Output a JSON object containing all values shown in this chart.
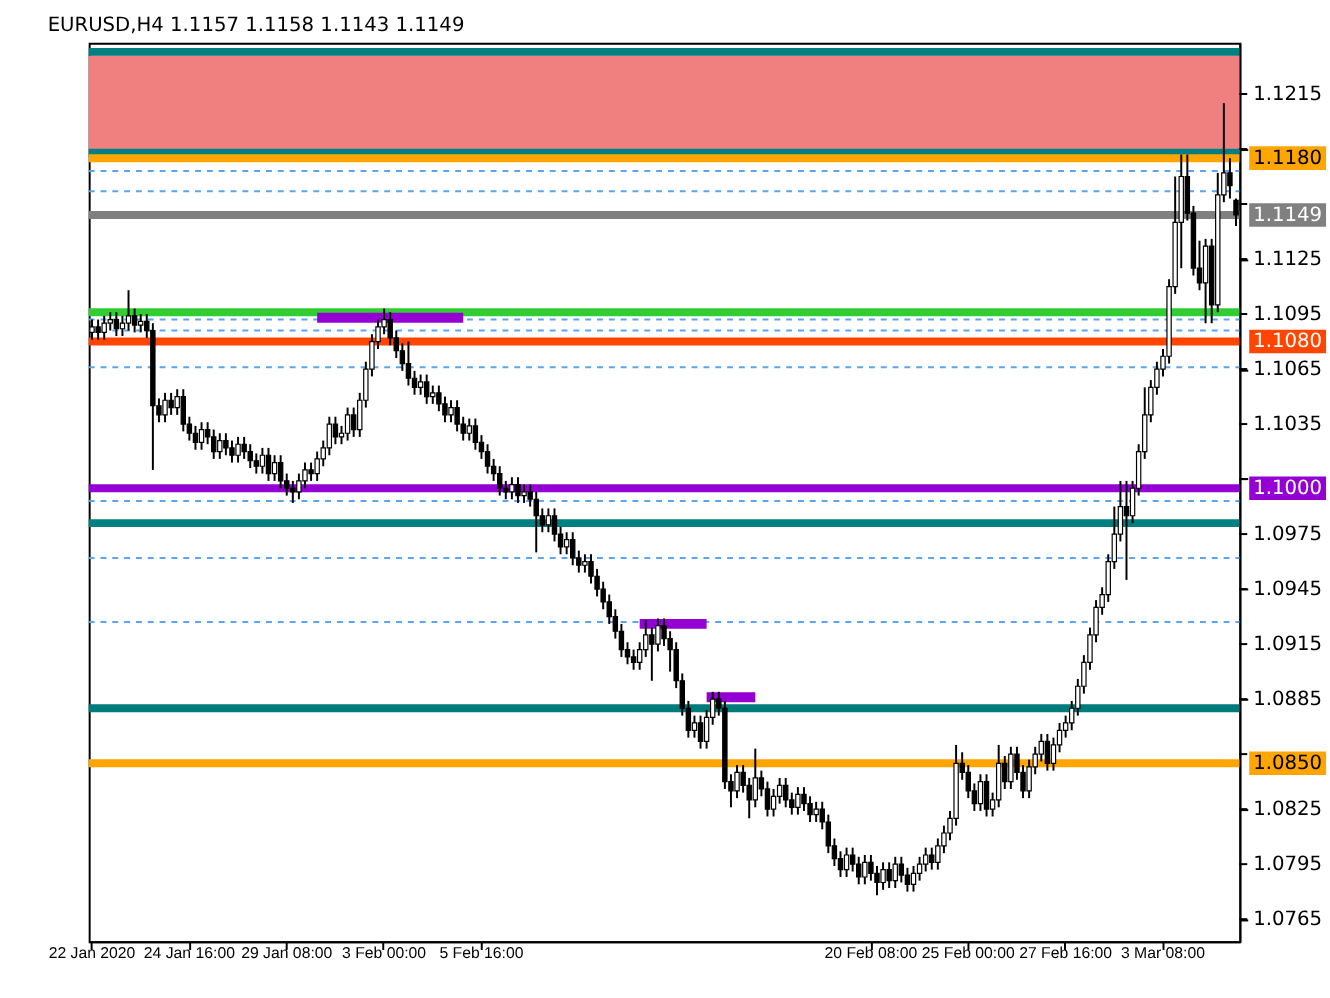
{
  "chart_data": {
    "type": "candlestick",
    "title": "EURUSD,H4  1.1157 1.1158 1.1143 1.1149",
    "categories": [
      "22 Jan 2020",
      null,
      null,
      null,
      null,
      null,
      null,
      null,
      null,
      null,
      null,
      null,
      null,
      null,
      null,
      null,
      "24 Jan 16:00",
      null,
      null,
      null,
      null,
      null,
      null,
      null,
      null,
      null,
      null,
      null,
      null,
      null,
      null,
      null,
      "29 Jan 08:00",
      null,
      null,
      null,
      null,
      null,
      null,
      null,
      null,
      null,
      null,
      null,
      null,
      null,
      null,
      null,
      "3 Feb 00:00",
      null,
      null,
      null,
      null,
      null,
      null,
      null,
      null,
      null,
      null,
      null,
      null,
      null,
      null,
      null,
      "5 Feb 16:00",
      null,
      null,
      null,
      null,
      null,
      null,
      null,
      null,
      null,
      null,
      null,
      null,
      null,
      null,
      null,
      null,
      null,
      null,
      null,
      null,
      null,
      null,
      null,
      null,
      null,
      null,
      null,
      null,
      null,
      null,
      null,
      null,
      null,
      null,
      null,
      null,
      null,
      null,
      null,
      null,
      null,
      null,
      null,
      null,
      null,
      null,
      null,
      null,
      null,
      null,
      null,
      null,
      null,
      null,
      null,
      null,
      null,
      null,
      null,
      null,
      null,
      null,
      null,
      "20 Feb 08:00",
      null,
      null,
      null,
      null,
      null,
      null,
      null,
      null,
      null,
      null,
      null,
      null,
      null,
      null,
      null,
      "25 Feb 00:00",
      null,
      null,
      null,
      null,
      null,
      null,
      null,
      null,
      null,
      null,
      null,
      null,
      null,
      null,
      null,
      "27 Feb 16:00",
      null,
      null,
      null,
      null,
      null,
      null,
      null,
      null,
      null,
      null,
      null,
      null,
      null,
      null,
      null,
      "3 Mar 08:00",
      null,
      null,
      null,
      null,
      null,
      null,
      null,
      null,
      null,
      null,
      null,
      null
    ],
    "ohlc": [
      [
        1.1085,
        1.1092,
        1.1081,
        1.1088
      ],
      [
        1.1088,
        1.1092,
        1.1081,
        1.1085
      ],
      [
        1.1085,
        1.1094,
        1.1081,
        1.109
      ],
      [
        1.109,
        1.1096,
        1.1086,
        1.1092
      ],
      [
        1.1092,
        1.1096,
        1.1083,
        1.1087
      ],
      [
        1.1087,
        1.1094,
        1.1083,
        1.109
      ],
      [
        1.109,
        1.1108,
        1.1086,
        1.1094
      ],
      [
        1.1094,
        1.1098,
        1.1085,
        1.1089
      ],
      [
        1.1089,
        1.1095,
        1.1085,
        1.1091
      ],
      [
        1.1091,
        1.1095,
        1.1082,
        1.1086
      ],
      [
        1.1086,
        1.109,
        1.101,
        1.1045
      ],
      [
        1.1045,
        1.1049,
        1.1036,
        1.104
      ],
      [
        1.104,
        1.1052,
        1.1036,
        1.1048
      ],
      [
        1.1048,
        1.1052,
        1.104,
        1.1044
      ],
      [
        1.1044,
        1.1054,
        1.104,
        1.105
      ],
      [
        1.105,
        1.1054,
        1.1031,
        1.1035
      ],
      [
        1.1035,
        1.1039,
        1.1026,
        1.103
      ],
      [
        1.103,
        1.1034,
        1.1021,
        1.1025
      ],
      [
        1.1025,
        1.1036,
        1.1021,
        1.1032
      ],
      [
        1.1032,
        1.1036,
        1.1024,
        1.1028
      ],
      [
        1.1028,
        1.1032,
        1.1016,
        1.102
      ],
      [
        1.102,
        1.103,
        1.1016,
        1.1026
      ],
      [
        1.1026,
        1.103,
        1.1018,
        1.1022
      ],
      [
        1.1022,
        1.1026,
        1.1014,
        1.1018
      ],
      [
        1.1018,
        1.1028,
        1.1014,
        1.1024
      ],
      [
        1.1024,
        1.1028,
        1.1016,
        1.102
      ],
      [
        1.102,
        1.1024,
        1.1011,
        1.1015
      ],
      [
        1.1015,
        1.1019,
        1.1008,
        1.1012
      ],
      [
        1.1012,
        1.1022,
        1.1008,
        1.1018
      ],
      [
        1.1018,
        1.1022,
        1.1004,
        1.1008
      ],
      [
        1.1008,
        1.1018,
        1.1004,
        1.1014
      ],
      [
        1.1014,
        1.1018,
        1.1,
        1.1004
      ],
      [
        1.1004,
        1.1008,
        1.0996,
        1.1
      ],
      [
        1.1,
        1.1004,
        1.0992,
        1.0998
      ],
      [
        1.0998,
        1.1008,
        1.0994,
        1.1004
      ],
      [
        1.1004,
        1.1014,
        1.1,
        1.101
      ],
      [
        1.101,
        1.1014,
        1.1004,
        1.1008
      ],
      [
        1.1008,
        1.102,
        1.1004,
        1.1016
      ],
      [
        1.1016,
        1.1026,
        1.1012,
        1.1022
      ],
      [
        1.1022,
        1.1039,
        1.1018,
        1.1035
      ],
      [
        1.1035,
        1.1039,
        1.1024,
        1.1028
      ],
      [
        1.1028,
        1.1034,
        1.1024,
        1.103
      ],
      [
        1.103,
        1.1044,
        1.1026,
        1.104
      ],
      [
        1.104,
        1.1044,
        1.1028,
        1.1032
      ],
      [
        1.1032,
        1.1052,
        1.1028,
        1.1048
      ],
      [
        1.1048,
        1.1069,
        1.1044,
        1.1065
      ],
      [
        1.1065,
        1.1084,
        1.1061,
        1.108
      ],
      [
        1.108,
        1.1092,
        1.1076,
        1.1088
      ],
      [
        1.1088,
        1.1098,
        1.1084,
        1.1092
      ],
      [
        1.1092,
        1.1096,
        1.1078,
        1.1082
      ],
      [
        1.1082,
        1.1086,
        1.1071,
        1.1075
      ],
      [
        1.1075,
        1.1079,
        1.1064,
        1.1068
      ],
      [
        1.1068,
        1.108,
        1.1056,
        1.106
      ],
      [
        1.106,
        1.1064,
        1.1051,
        1.1055
      ],
      [
        1.1055,
        1.1062,
        1.1051,
        1.1058
      ],
      [
        1.1058,
        1.1062,
        1.1046,
        1.105
      ],
      [
        1.105,
        1.1056,
        1.1046,
        1.1052
      ],
      [
        1.1052,
        1.1056,
        1.1042,
        1.1046
      ],
      [
        1.1046,
        1.105,
        1.1036,
        1.104
      ],
      [
        1.104,
        1.1048,
        1.1036,
        1.1044
      ],
      [
        1.1044,
        1.1048,
        1.1031,
        1.1035
      ],
      [
        1.1035,
        1.1039,
        1.1026,
        1.103
      ],
      [
        1.103,
        1.1038,
        1.1026,
        1.1034
      ],
      [
        1.1034,
        1.1038,
        1.1021,
        1.1025
      ],
      [
        1.1025,
        1.1029,
        1.1016,
        1.102
      ],
      [
        1.102,
        1.1024,
        1.1008,
        1.1012
      ],
      [
        1.1012,
        1.1016,
        1.1004,
        1.1008
      ],
      [
        1.1008,
        1.1012,
        1.0996,
        1.1
      ],
      [
        1.1,
        1.1004,
        1.0994,
        1.0998
      ],
      [
        1.0998,
        1.1006,
        1.0994,
        1.1002
      ],
      [
        1.1002,
        1.1006,
        1.0992,
        1.0996
      ],
      [
        1.0996,
        1.1002,
        1.0992,
        1.0998
      ],
      [
        1.0998,
        1.1002,
        1.099,
        1.0994
      ],
      [
        1.0994,
        1.0998,
        1.0965,
        1.0985
      ],
      [
        1.0985,
        1.0989,
        1.0976,
        1.098
      ],
      [
        1.098,
        1.0989,
        1.0976,
        1.0985
      ],
      [
        1.0985,
        1.0989,
        1.0971,
        1.0975
      ],
      [
        1.0975,
        1.0979,
        1.0964,
        1.0968
      ],
      [
        1.0968,
        1.0976,
        1.0964,
        1.0972
      ],
      [
        1.0972,
        1.0976,
        1.0958,
        1.0962
      ],
      [
        1.0962,
        1.0966,
        1.0954,
        1.0958
      ],
      [
        1.0958,
        1.0964,
        1.0954,
        1.096
      ],
      [
        1.096,
        1.0964,
        1.0948,
        1.0952
      ],
      [
        1.0952,
        1.0956,
        1.0941,
        1.0945
      ],
      [
        1.0945,
        1.0949,
        1.0934,
        1.0938
      ],
      [
        1.0938,
        1.0942,
        1.0926,
        1.093
      ],
      [
        1.093,
        1.0934,
        1.0918,
        1.0922
      ],
      [
        1.0922,
        1.0926,
        1.0908,
        1.0912
      ],
      [
        1.0912,
        1.0916,
        1.0904,
        1.0908
      ],
      [
        1.0908,
        1.0912,
        1.0901,
        1.0905
      ],
      [
        1.0905,
        1.0916,
        1.0901,
        1.0912
      ],
      [
        1.0912,
        1.0928,
        1.0908,
        1.092
      ],
      [
        1.092,
        1.0924,
        1.0895,
        1.0915
      ],
      [
        1.0915,
        1.0929,
        1.0911,
        1.0925
      ],
      [
        1.0925,
        1.0929,
        1.0914,
        1.0918
      ],
      [
        1.0918,
        1.0922,
        1.09,
        1.0912
      ],
      [
        1.0912,
        1.0916,
        1.0891,
        1.0895
      ],
      [
        1.0895,
        1.0899,
        1.0876,
        1.088
      ],
      [
        1.088,
        1.0884,
        1.0864,
        1.0868
      ],
      [
        1.0868,
        1.0876,
        1.0864,
        1.0872
      ],
      [
        1.0872,
        1.0876,
        1.0858,
        1.0862
      ],
      [
        1.0862,
        1.0879,
        1.0858,
        1.0875
      ],
      [
        1.0875,
        1.0889,
        1.0871,
        1.0885
      ],
      [
        1.0885,
        1.0889,
        1.0876,
        1.088
      ],
      [
        1.088,
        1.0884,
        1.0836,
        1.084
      ],
      [
        1.084,
        1.0844,
        1.0826,
        1.0835
      ],
      [
        1.0835,
        1.0849,
        1.0831,
        1.0845
      ],
      [
        1.0845,
        1.0849,
        1.0834,
        1.0838
      ],
      [
        1.0838,
        1.0842,
        1.082,
        1.083
      ],
      [
        1.083,
        1.0858,
        1.0826,
        1.0842
      ],
      [
        1.0842,
        1.0846,
        1.0832,
        1.0836
      ],
      [
        1.0836,
        1.084,
        1.0821,
        1.0825
      ],
      [
        1.0825,
        1.0836,
        1.0821,
        1.0832
      ],
      [
        1.0832,
        1.0842,
        1.0828,
        1.0838
      ],
      [
        1.0838,
        1.0842,
        1.0826,
        1.083
      ],
      [
        1.083,
        1.0834,
        1.0822,
        1.0826
      ],
      [
        1.0826,
        1.0837,
        1.0822,
        1.0833
      ],
      [
        1.0833,
        1.0837,
        1.0824,
        1.0828
      ],
      [
        1.0828,
        1.0832,
        1.0818,
        1.0822
      ],
      [
        1.0822,
        1.0829,
        1.0818,
        1.0825
      ],
      [
        1.0825,
        1.0829,
        1.0814,
        1.0818
      ],
      [
        1.0818,
        1.0822,
        1.0801,
        1.0805
      ],
      [
        1.0805,
        1.0809,
        1.0794,
        1.0798
      ],
      [
        1.0798,
        1.0802,
        1.0788,
        1.0792
      ],
      [
        1.0792,
        1.0804,
        1.0788,
        1.08
      ],
      [
        1.08,
        1.0804,
        1.0791,
        1.0795
      ],
      [
        1.0795,
        1.0799,
        1.0784,
        1.0788
      ],
      [
        1.0788,
        1.08,
        1.0784,
        1.0796
      ],
      [
        1.0796,
        1.08,
        1.0786,
        1.079
      ],
      [
        1.079,
        1.0794,
        1.0778,
        1.0785
      ],
      [
        1.0785,
        1.0796,
        1.0781,
        1.0792
      ],
      [
        1.0792,
        1.0796,
        1.0782,
        1.0786
      ],
      [
        1.0786,
        1.0799,
        1.0782,
        1.0795
      ],
      [
        1.0795,
        1.0799,
        1.0785,
        1.0789
      ],
      [
        1.0789,
        1.0793,
        1.078,
        1.0784
      ],
      [
        1.0784,
        1.0794,
        1.078,
        1.079
      ],
      [
        1.079,
        1.0799,
        1.0786,
        1.0795
      ],
      [
        1.0795,
        1.0804,
        1.0791,
        1.08
      ],
      [
        1.08,
        1.0804,
        1.0792,
        1.0796
      ],
      [
        1.0796,
        1.0809,
        1.0792,
        1.0805
      ],
      [
        1.0805,
        1.0816,
        1.0801,
        1.0812
      ],
      [
        1.0812,
        1.0824,
        1.0808,
        1.082
      ],
      [
        1.082,
        1.086,
        1.0816,
        1.085
      ],
      [
        1.085,
        1.0856,
        1.0841,
        1.0845
      ],
      [
        1.0845,
        1.0849,
        1.0831,
        1.0835
      ],
      [
        1.0835,
        1.0839,
        1.0824,
        1.0828
      ],
      [
        1.0828,
        1.0844,
        1.0824,
        1.084
      ],
      [
        1.084,
        1.0844,
        1.0821,
        1.0825
      ],
      [
        1.0825,
        1.0834,
        1.0821,
        1.083
      ],
      [
        1.083,
        1.086,
        1.0826,
        1.085
      ],
      [
        1.085,
        1.0854,
        1.0836,
        1.084
      ],
      [
        1.084,
        1.0859,
        1.0836,
        1.0855
      ],
      [
        1.0855,
        1.0859,
        1.0841,
        1.0845
      ],
      [
        1.0845,
        1.0849,
        1.0831,
        1.0835
      ],
      [
        1.0835,
        1.0852,
        1.0831,
        1.0848
      ],
      [
        1.0848,
        1.0859,
        1.0844,
        1.0855
      ],
      [
        1.0855,
        1.0866,
        1.0851,
        1.0862
      ],
      [
        1.0862,
        1.0866,
        1.0846,
        1.085
      ],
      [
        1.085,
        1.0864,
        1.0846,
        1.086
      ],
      [
        1.086,
        1.0872,
        1.0856,
        1.0868
      ],
      [
        1.0868,
        1.0876,
        1.0864,
        1.0872
      ],
      [
        1.0872,
        1.0884,
        1.0868,
        1.088
      ],
      [
        1.088,
        1.0896,
        1.0876,
        1.0892
      ],
      [
        1.0892,
        1.0909,
        1.0888,
        1.0905
      ],
      [
        1.0905,
        1.0924,
        1.0901,
        1.092
      ],
      [
        1.092,
        1.0939,
        1.0916,
        1.0935
      ],
      [
        1.0935,
        1.0946,
        1.0931,
        1.0942
      ],
      [
        1.0942,
        1.0964,
        1.0938,
        1.096
      ],
      [
        1.096,
        1.099,
        1.0956,
        1.0975
      ],
      [
        1.0975,
        1.1004,
        1.0971,
        1.099
      ],
      [
        1.099,
        1.1004,
        1.095,
        1.0985
      ],
      [
        1.0985,
        1.1004,
        1.0981,
        1.1
      ],
      [
        1.1,
        1.1024,
        1.0996,
        1.102
      ],
      [
        1.102,
        1.1055,
        1.1016,
        1.104
      ],
      [
        1.104,
        1.1059,
        1.1036,
        1.1055
      ],
      [
        1.1055,
        1.1069,
        1.1051,
        1.1065
      ],
      [
        1.1065,
        1.1076,
        1.1061,
        1.1072
      ],
      [
        1.1072,
        1.1114,
        1.1068,
        1.111
      ],
      [
        1.111,
        1.117,
        1.1106,
        1.1145
      ],
      [
        1.1145,
        1.1182,
        1.112,
        1.117
      ],
      [
        1.117,
        1.1182,
        1.1146,
        1.115
      ],
      [
        1.115,
        1.1154,
        1.1116,
        1.112
      ],
      [
        1.112,
        1.1135,
        1.1108,
        1.1112
      ],
      [
        1.1112,
        1.1136,
        1.109,
        1.1132
      ],
      [
        1.1132,
        1.1136,
        1.109,
        1.11
      ],
      [
        1.11,
        1.1172,
        1.1096,
        1.116
      ],
      [
        1.116,
        1.121,
        1.1156,
        1.1172
      ],
      [
        1.1172,
        1.118,
        1.1158,
        1.1165
      ],
      [
        1.1157,
        1.1158,
        1.1143,
        1.1149
      ]
    ],
    "series": [
      {
        "type": "line",
        "color": "#9400d3",
        "values": [
          null,
          null,
          null,
          null,
          null,
          null,
          null,
          null,
          null,
          null,
          null,
          null,
          null,
          null,
          null,
          null,
          null,
          null,
          null,
          null,
          null,
          null,
          null,
          null,
          null,
          null,
          null,
          null,
          null,
          null,
          null,
          null,
          null,
          null,
          null,
          null,
          null,
          1.1093,
          1.1093,
          1.1093,
          1.1093,
          1.1093,
          1.1093,
          1.1093,
          1.1093,
          1.1093,
          1.1093,
          1.1093,
          1.1093,
          1.1093,
          1.1093,
          1.1093,
          1.1093,
          1.1093,
          1.1093,
          1.1093,
          1.1093,
          1.1093,
          1.1093,
          1.1093,
          1.1093,
          1.1093,
          null,
          null,
          null,
          null,
          null,
          null,
          null,
          null,
          null,
          null,
          null,
          null,
          null,
          null,
          null,
          null,
          null,
          null,
          null,
          null,
          null,
          null,
          null,
          null,
          null,
          null,
          null,
          null,
          null,
          null,
          null,
          null,
          null,
          null,
          null,
          null,
          null,
          null,
          null,
          null,
          null,
          null,
          null,
          null,
          null,
          null,
          null,
          null,
          null,
          null,
          null,
          null,
          null,
          null,
          null,
          null,
          null,
          null,
          null,
          null,
          null,
          null,
          null,
          null,
          null,
          null,
          null,
          null,
          null,
          null,
          null,
          null,
          null,
          null,
          null,
          null,
          null,
          null,
          null,
          null,
          null,
          null,
          null,
          null,
          null,
          null,
          null,
          null,
          null,
          null,
          null,
          null,
          null,
          null,
          null,
          null,
          null,
          null,
          null,
          null,
          null,
          null,
          null,
          null,
          null,
          null,
          null,
          null,
          null,
          null,
          null,
          null,
          null,
          null,
          null,
          null,
          null,
          null,
          null,
          null,
          null,
          null,
          null,
          null,
          null,
          null,
          null
        ]
      },
      {
        "type": "line",
        "color": "#9400d3",
        "values": [
          null,
          null,
          null,
          null,
          null,
          null,
          null,
          null,
          null,
          null,
          null,
          null,
          null,
          null,
          null,
          null,
          null,
          null,
          null,
          null,
          null,
          null,
          null,
          null,
          null,
          null,
          null,
          null,
          null,
          null,
          null,
          null,
          null,
          null,
          null,
          null,
          null,
          null,
          null,
          null,
          null,
          null,
          null,
          null,
          null,
          null,
          null,
          null,
          null,
          null,
          null,
          null,
          null,
          null,
          null,
          null,
          null,
          null,
          null,
          null,
          null,
          null,
          null,
          null,
          null,
          null,
          null,
          null,
          null,
          null,
          null,
          null,
          null,
          null,
          null,
          null,
          null,
          null,
          null,
          null,
          null,
          null,
          null,
          null,
          null,
          null,
          null,
          null,
          null,
          null,
          1.0926,
          1.0926,
          1.0926,
          1.0926,
          1.0926,
          1.0926,
          1.0926,
          1.0926,
          1.0926,
          1.0926,
          1.0926,
          1.0926,
          null,
          null,
          null,
          null,
          null,
          null,
          null,
          null,
          null,
          null,
          null,
          null,
          null,
          null,
          null,
          null,
          null,
          null,
          null,
          null,
          null,
          null,
          null,
          null,
          null,
          null,
          null,
          null,
          null,
          null,
          null,
          null,
          null,
          null,
          null,
          null,
          null,
          null,
          null,
          null,
          null,
          null,
          null,
          null,
          null,
          null,
          null,
          null,
          null,
          null,
          null,
          null,
          null,
          null,
          null,
          null,
          null,
          null,
          null,
          null,
          null,
          null,
          null,
          null,
          null,
          null,
          null,
          null,
          null,
          null,
          null,
          null,
          null,
          null,
          null,
          null,
          null,
          null,
          null,
          null,
          null,
          null,
          null,
          null,
          null,
          null,
          null
        ]
      },
      {
        "type": "line",
        "color": "#9400d3",
        "values": [
          null,
          null,
          null,
          null,
          null,
          null,
          null,
          null,
          null,
          null,
          null,
          null,
          null,
          null,
          null,
          null,
          null,
          null,
          null,
          null,
          null,
          null,
          null,
          null,
          null,
          null,
          null,
          null,
          null,
          null,
          null,
          null,
          null,
          null,
          null,
          null,
          null,
          null,
          null,
          null,
          null,
          null,
          null,
          null,
          null,
          null,
          null,
          null,
          null,
          null,
          null,
          null,
          null,
          null,
          null,
          null,
          null,
          null,
          null,
          null,
          null,
          null,
          null,
          null,
          null,
          null,
          null,
          null,
          null,
          null,
          null,
          null,
          null,
          null,
          null,
          null,
          null,
          null,
          null,
          null,
          null,
          null,
          null,
          null,
          null,
          null,
          null,
          null,
          null,
          null,
          null,
          null,
          null,
          null,
          null,
          null,
          null,
          null,
          null,
          null,
          null,
          1.0886,
          1.0886,
          1.0886,
          1.0886,
          1.0886,
          1.0886,
          1.0886,
          1.0886,
          1.0886,
          null,
          null,
          null,
          null,
          null,
          null,
          null,
          null,
          null,
          null,
          null,
          null,
          null,
          null,
          null,
          null,
          null,
          null,
          null,
          null,
          null,
          null,
          null,
          null,
          null,
          null,
          null,
          null,
          null,
          null,
          null,
          null,
          null,
          null,
          null,
          null,
          null,
          null,
          null,
          null,
          null,
          null,
          null,
          null,
          null,
          null,
          null,
          null,
          null,
          null,
          null,
          null,
          null,
          null,
          null,
          null,
          null,
          null,
          null,
          null,
          null,
          null,
          null,
          null,
          null,
          null,
          null,
          null,
          null,
          null,
          null,
          null,
          null,
          null,
          null,
          null,
          null,
          null,
          null
        ]
      }
    ],
    "ylim": [
      1.0753,
      1.1243
    ],
    "yticks": [
      1.0765,
      1.0795,
      1.0825,
      {
        "value": 1.0855,
        "label": null
      },
      1.0885,
      1.0915,
      1.0945,
      1.0975,
      {
        "value": 1.1005,
        "label": null
      },
      1.1035,
      1.1065,
      1.1095,
      1.1125,
      {
        "value": 1.1155,
        "label": null
      },
      {
        "value": 1.1185,
        "label": null
      },
      1.1215
    ],
    "bands": [
      {
        "axis": "y",
        "from": 1.1183,
        "to": 1.1236,
        "color": "#f08080"
      }
    ],
    "ref_lines": [
      {
        "axis": "y",
        "value": 1.1238,
        "color": "#008080",
        "line_style": "solid"
      },
      {
        "axis": "y",
        "value": 1.1183,
        "color": "#008080",
        "line_style": "solid"
      },
      {
        "axis": "y",
        "value": 1.118,
        "color": "#ffa500",
        "line_style": "solid",
        "label": "1.1180"
      },
      {
        "axis": "y",
        "value": 1.1173,
        "color": "#5aa5f0",
        "line_style": "dashed"
      },
      {
        "axis": "y",
        "value": 1.1162,
        "color": "#5aa5f0",
        "line_style": "dashed"
      },
      {
        "axis": "y",
        "value": 1.1149,
        "color": "#808080",
        "line_style": "solid",
        "label": "1.1149"
      },
      {
        "axis": "y",
        "value": 1.1096,
        "color": "#32cd32",
        "line_style": "solid"
      },
      {
        "axis": "y",
        "value": 1.1092,
        "color": "#5aa5f0",
        "line_style": "dashed"
      },
      {
        "axis": "y",
        "value": 1.1086,
        "color": "#5aa5f0",
        "line_style": "dashed"
      },
      {
        "axis": "y",
        "value": 1.108,
        "color": "#ff4500",
        "line_style": "solid",
        "label": "1.1080"
      },
      {
        "axis": "y",
        "value": 1.1066,
        "color": "#5aa5f0",
        "line_style": "dashed"
      },
      {
        "axis": "y",
        "value": 1.1,
        "color": "#9400d3",
        "line_style": "solid",
        "label": "1.1000"
      },
      {
        "axis": "y",
        "value": 1.0993,
        "color": "#5aa5f0",
        "line_style": "dashed"
      },
      {
        "axis": "y",
        "value": 1.0981,
        "color": "#008080",
        "line_style": "solid"
      },
      {
        "axis": "y",
        "value": 1.0962,
        "color": "#5aa5f0",
        "line_style": "dashed"
      },
      {
        "axis": "y",
        "value": 1.0927,
        "color": "#5aa5f0",
        "line_style": "dashed"
      },
      {
        "axis": "y",
        "value": 1.088,
        "color": "#007b7b",
        "line_style": "solid"
      },
      {
        "axis": "y",
        "value": 1.085,
        "color": "#ffa500",
        "line_style": "solid",
        "label": "1.0850"
      }
    ],
    "grid": false
  }
}
